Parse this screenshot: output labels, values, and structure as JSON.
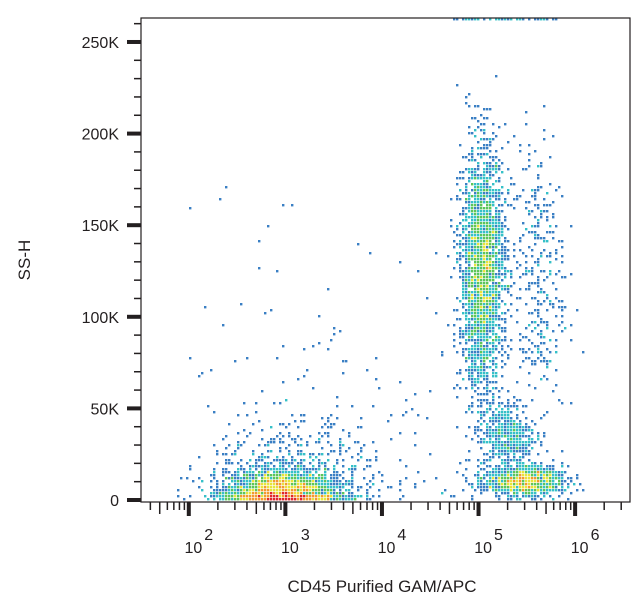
{
  "chart_data": {
    "type": "scatter",
    "subtype": "flow-cytometry density dot plot",
    "xlabel": "CD45 Purified GAM/APC",
    "ylabel": "SS-H",
    "x_scale": "log",
    "xlim": [
      32,
      3700000
    ],
    "ylim": [
      0,
      262000
    ],
    "x_ticks": [
      {
        "value": 100,
        "base": "10",
        "exp": "2"
      },
      {
        "value": 1000,
        "base": "10",
        "exp": "3"
      },
      {
        "value": 10000,
        "base": "10",
        "exp": "4"
      },
      {
        "value": 100000,
        "base": "10",
        "exp": "5"
      },
      {
        "value": 1000000,
        "base": "10",
        "exp": "6"
      }
    ],
    "y_ticks": [
      {
        "value": 0,
        "label": "0"
      },
      {
        "value": 50000,
        "label": "50K"
      },
      {
        "value": 100000,
        "label": "100K"
      },
      {
        "value": 150000,
        "label": "150K"
      },
      {
        "value": 200000,
        "label": "200K"
      },
      {
        "value": 250000,
        "label": "250K"
      }
    ],
    "grid": false,
    "colormap": [
      "#2b3f9e",
      "#3a7fc4",
      "#35c0c8",
      "#5cc55a",
      "#e8e33a",
      "#f29a2e",
      "#e0262a"
    ],
    "populations": [
      {
        "x_center": 900,
        "x_log_sd": 0.28,
        "y_center": 4000,
        "y_sd": 6000,
        "events": 2600
      },
      {
        "x_center": 1500,
        "x_log_sd": 0.45,
        "y_center": 15000,
        "y_sd": 15000,
        "events": 500
      },
      {
        "x_center": 110000,
        "x_log_sd": 0.11,
        "y_center": 125000,
        "y_sd": 32000,
        "events": 2600
      },
      {
        "x_center": 300000,
        "x_log_sd": 0.2,
        "y_center": 10000,
        "y_sd": 4000,
        "events": 1100
      },
      {
        "x_center": 200000,
        "x_log_sd": 0.15,
        "y_center": 35000,
        "y_sd": 10000,
        "events": 450
      },
      {
        "x_center": 400000,
        "x_log_sd": 0.15,
        "y_center": 120000,
        "y_sd": 40000,
        "events": 350
      }
    ]
  }
}
